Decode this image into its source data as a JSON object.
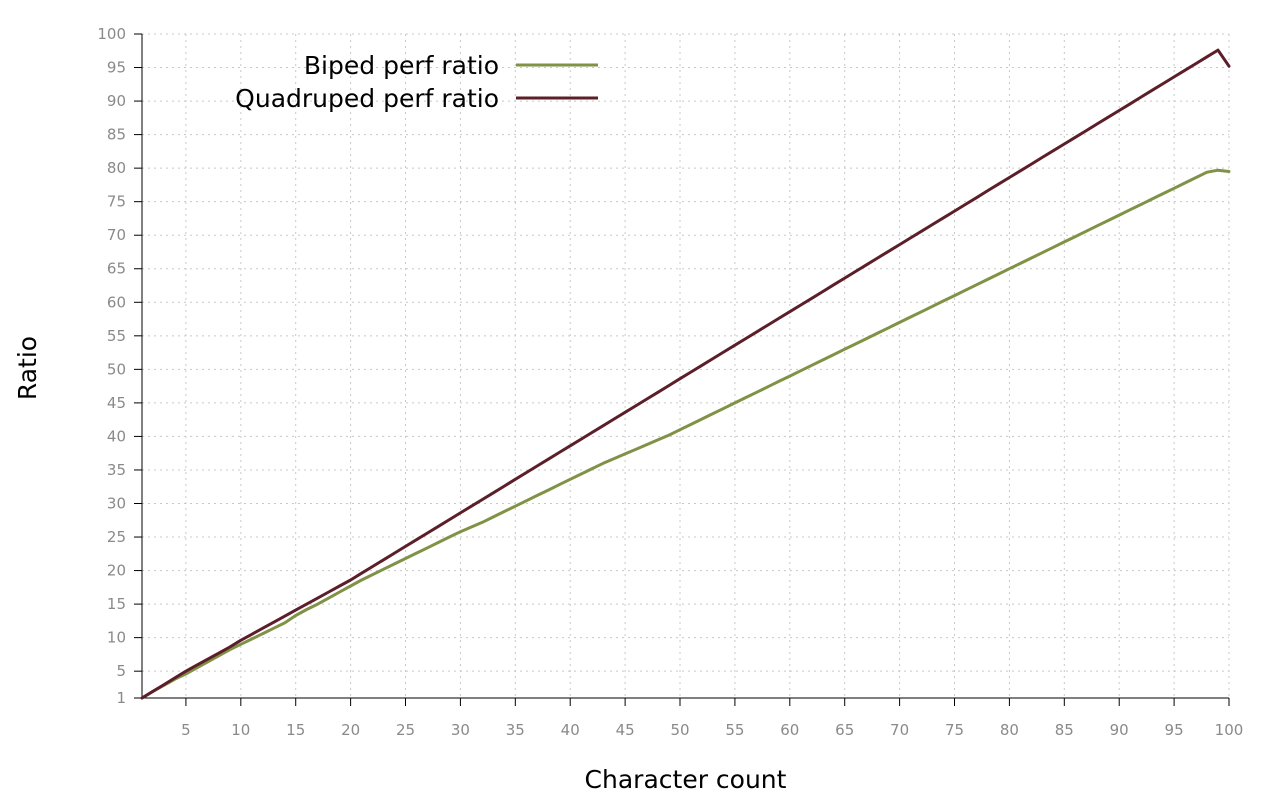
{
  "chart_data": {
    "type": "line",
    "title": "",
    "xlabel": "Character count",
    "ylabel": "Ratio",
    "xlim": [
      1,
      100
    ],
    "ylim": [
      1,
      100
    ],
    "xticks": [
      5,
      10,
      15,
      20,
      25,
      30,
      35,
      40,
      45,
      50,
      55,
      60,
      65,
      70,
      75,
      80,
      85,
      90,
      95,
      100
    ],
    "yticks": [
      1,
      5,
      10,
      15,
      20,
      25,
      30,
      35,
      40,
      45,
      50,
      55,
      60,
      65,
      70,
      75,
      80,
      85,
      90,
      95,
      100
    ],
    "grid": true,
    "legend_position": "top-left",
    "x": [
      1,
      2,
      3,
      4,
      5,
      6,
      7,
      8,
      9,
      10,
      11,
      12,
      13,
      14,
      15,
      16,
      17,
      18,
      19,
      20,
      21,
      22,
      23,
      24,
      25,
      26,
      27,
      28,
      29,
      30,
      31,
      32,
      33,
      34,
      35,
      36,
      37,
      38,
      39,
      40,
      41,
      42,
      43,
      44,
      45,
      46,
      47,
      48,
      49,
      50,
      51,
      52,
      53,
      54,
      55,
      56,
      57,
      58,
      59,
      60,
      61,
      62,
      63,
      64,
      65,
      66,
      67,
      68,
      69,
      70,
      71,
      72,
      73,
      74,
      75,
      76,
      77,
      78,
      79,
      80,
      81,
      82,
      83,
      84,
      85,
      86,
      87,
      88,
      89,
      90,
      91,
      92,
      93,
      94,
      95,
      96,
      97,
      98,
      99,
      100
    ],
    "series": [
      {
        "name": "Biped perf ratio",
        "color": "#7f9245",
        "values": [
          1,
          2,
          2.9,
          3.8,
          4.6,
          5.5,
          6.4,
          7.3,
          8.2,
          9,
          9.8,
          10.6,
          11.4,
          12.2,
          13.3,
          14.2,
          15,
          15.9,
          16.8,
          17.7,
          18.6,
          19.4,
          20.2,
          21,
          21.8,
          22.6,
          23.4,
          24.2,
          25,
          25.8,
          26.5,
          27.2,
          28,
          28.8,
          29.6,
          30.4,
          31.2,
          32,
          32.8,
          33.6,
          34.4,
          35.2,
          36,
          36.7,
          37.4,
          38.1,
          38.8,
          39.5,
          40.2,
          41,
          41.8,
          42.6,
          43.4,
          44.2,
          45,
          45.8,
          46.6,
          47.4,
          48.2,
          49,
          49.8,
          50.6,
          51.4,
          52.2,
          53,
          53.8,
          54.6,
          55.4,
          56.2,
          57,
          57.8,
          58.6,
          59.4,
          60.2,
          61,
          61.8,
          62.6,
          63.4,
          64.2,
          65,
          65.8,
          66.6,
          67.4,
          68.2,
          69,
          69.8,
          70.6,
          71.4,
          72.2,
          73,
          73.8,
          74.6,
          75.4,
          76.2,
          77,
          77.8,
          78.6,
          79.4,
          79.7,
          79.5
        ]
      },
      {
        "name": "Quadruped perf ratio",
        "color": "#5c1f2a",
        "values": [
          1,
          2,
          3,
          4,
          5,
          5.9,
          6.8,
          7.7,
          8.6,
          9.6,
          10.5,
          11.4,
          12.3,
          13.2,
          14.1,
          15,
          15.9,
          16.8,
          17.7,
          18.6,
          19.6,
          20.6,
          21.6,
          22.6,
          23.6,
          24.6,
          25.6,
          26.6,
          27.6,
          28.6,
          29.6,
          30.6,
          31.6,
          32.6,
          33.6,
          34.6,
          35.6,
          36.6,
          37.6,
          38.6,
          39.6,
          40.6,
          41.6,
          42.6,
          43.6,
          44.6,
          45.6,
          46.6,
          47.6,
          48.6,
          49.6,
          50.6,
          51.6,
          52.6,
          53.6,
          54.6,
          55.6,
          56.6,
          57.6,
          58.6,
          59.6,
          60.6,
          61.6,
          62.6,
          63.6,
          64.6,
          65.6,
          66.6,
          67.6,
          68.6,
          69.6,
          70.6,
          71.6,
          72.6,
          73.6,
          74.6,
          75.6,
          76.6,
          77.6,
          78.6,
          79.6,
          80.6,
          81.6,
          82.6,
          83.6,
          84.6,
          85.6,
          86.6,
          87.6,
          88.6,
          89.6,
          90.6,
          91.6,
          92.6,
          93.6,
          94.6,
          95.6,
          96.6,
          97.6,
          95.2
        ]
      }
    ]
  }
}
